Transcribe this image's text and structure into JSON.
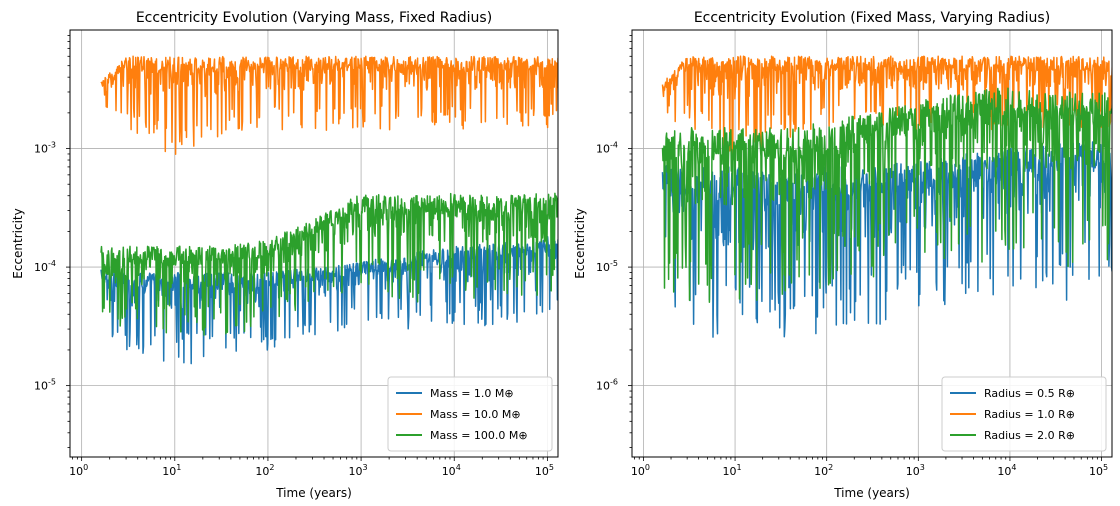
{
  "chart_data": [
    {
      "type": "line",
      "title": "Eccentricity Evolution (Varying Mass, Fixed Radius)",
      "xlabel": "Time (years)",
      "ylabel": "Eccentricity",
      "xscale": "log",
      "yscale": "log",
      "xlim": [
        0.75,
        130000
      ],
      "ylim": [
        2.5e-06,
        0.01
      ],
      "grid": true,
      "legend_position": "lower-right",
      "xticks": [
        {
          "label": "10",
          "sup": "0",
          "v": 1
        },
        {
          "label": "10",
          "sup": "1",
          "v": 10
        },
        {
          "label": "10",
          "sup": "2",
          "v": 100
        },
        {
          "label": "10",
          "sup": "3",
          "v": 1000
        },
        {
          "label": "10",
          "sup": "4",
          "v": 10000
        },
        {
          "label": "10",
          "sup": "5",
          "v": 100000
        }
      ],
      "yticks": [
        {
          "label": "10",
          "sup": "-5",
          "v": 1e-05
        },
        {
          "label": "10",
          "sup": "-4",
          "v": 0.0001
        },
        {
          "label": "10",
          "sup": "-3",
          "v": 0.001
        }
      ],
      "series": [
        {
          "name": "Mass = 1.0 M⊕",
          "color": "#1f77b4",
          "x": [
            1,
            3,
            10,
            30,
            100,
            300,
            1000,
            3000,
            10000,
            30000,
            100000
          ],
          "lower": [
            3e-05,
            2e-05,
            1.5e-05,
            1.5e-05,
            2e-05,
            2.5e-05,
            3e-05,
            3e-05,
            3e-05,
            3e-05,
            4e-05
          ],
          "upper": [
            0.0001,
            9e-05,
            9e-05,
            9e-05,
            9e-05,
            0.0001,
            0.00011,
            0.00013,
            0.00015,
            0.00016,
            0.00018
          ]
        },
        {
          "name": "Mass = 10.0 M⊕",
          "color": "#ff7f0e",
          "x": [
            1,
            3,
            10,
            30,
            100,
            300,
            1000,
            3000,
            10000,
            30000,
            100000
          ],
          "lower": [
            0.0022,
            0.0015,
            0.0008,
            0.0012,
            0.0014,
            0.0014,
            0.0014,
            0.0014,
            0.0014,
            0.0014,
            0.0015
          ],
          "upper": [
            0.0025,
            0.006,
            0.006,
            0.006,
            0.006,
            0.006,
            0.006,
            0.006,
            0.006,
            0.006,
            0.006
          ]
        },
        {
          "name": "Mass = 100.0 M⊕",
          "color": "#2ca02c",
          "x": [
            1,
            3,
            10,
            30,
            100,
            300,
            1000,
            3000,
            10000,
            30000,
            100000
          ],
          "lower": [
            3e-05,
            3e-05,
            2.5e-05,
            2.5e-05,
            3e-05,
            5e-05,
            6e-05,
            5e-05,
            5e-05,
            5e-05,
            5e-05
          ],
          "upper": [
            0.00015,
            0.00015,
            0.00015,
            0.00015,
            0.00017,
            0.00025,
            0.00042,
            0.0004,
            0.00042,
            0.0004,
            0.00042
          ]
        }
      ]
    },
    {
      "type": "line",
      "title": "Eccentricity Evolution (Fixed Mass, Varying Radius)",
      "xlabel": "Time (years)",
      "ylabel": "Eccentricity",
      "xscale": "log",
      "yscale": "log",
      "xlim": [
        0.75,
        130000
      ],
      "ylim": [
        2.5e-07,
        0.001
      ],
      "grid": true,
      "legend_position": "lower-right",
      "xticks": [
        {
          "label": "10",
          "sup": "0",
          "v": 1
        },
        {
          "label": "10",
          "sup": "1",
          "v": 10
        },
        {
          "label": "10",
          "sup": "2",
          "v": 100
        },
        {
          "label": "10",
          "sup": "3",
          "v": 1000
        },
        {
          "label": "10",
          "sup": "4",
          "v": 10000
        },
        {
          "label": "10",
          "sup": "5",
          "v": 100000
        }
      ],
      "yticks": [
        {
          "label": "10",
          "sup": "-6",
          "v": 1e-06
        },
        {
          "label": "10",
          "sup": "-5",
          "v": 1e-05
        },
        {
          "label": "10",
          "sup": "-4",
          "v": 0.0001
        }
      ],
      "series": [
        {
          "name": "Radius = 0.5 R⊕",
          "color": "#1f77b4",
          "x": [
            1,
            3,
            10,
            30,
            100,
            300,
            1000,
            3000,
            10000,
            30000,
            100000
          ],
          "lower": [
            3e-06,
            3e-06,
            2e-06,
            2e-06,
            3e-06,
            3e-06,
            4e-06,
            4e-06,
            5e-06,
            5e-06,
            6e-06
          ],
          "upper": [
            7.5e-05,
            7e-05,
            7e-05,
            6e-05,
            7e-05,
            7e-05,
            8e-05,
            9e-05,
            0.0001,
            0.00011,
            0.00012
          ]
        },
        {
          "name": "Radius = 1.0 R⊕",
          "color": "#ff7f0e",
          "x": [
            1,
            3,
            10,
            30,
            100,
            300,
            1000,
            3000,
            10000,
            30000,
            100000
          ],
          "lower": [
            0.00022,
            0.00015,
            8e-05,
            0.00012,
            0.00014,
            0.00014,
            0.00014,
            0.00014,
            0.00014,
            0.00014,
            0.00015
          ],
          "upper": [
            0.00025,
            0.0006,
            0.0006,
            0.0006,
            0.0006,
            0.0006,
            0.0006,
            0.0006,
            0.0006,
            0.0006,
            0.0006
          ]
        },
        {
          "name": "Radius = 2.0 R⊕",
          "color": "#2ca02c",
          "x": [
            1,
            3,
            10,
            30,
            100,
            300,
            1000,
            3000,
            10000,
            30000,
            100000
          ],
          "lower": [
            6e-06,
            5e-06,
            5e-06,
            5e-06,
            6e-06,
            8e-06,
            1e-05,
            1e-05,
            1e-05,
            1e-05,
            1e-05
          ],
          "upper": [
            0.00015,
            0.00015,
            0.00015,
            0.00015,
            0.00017,
            0.0002,
            0.00025,
            0.0003,
            0.00033,
            0.00031,
            0.0003
          ]
        }
      ]
    }
  ]
}
